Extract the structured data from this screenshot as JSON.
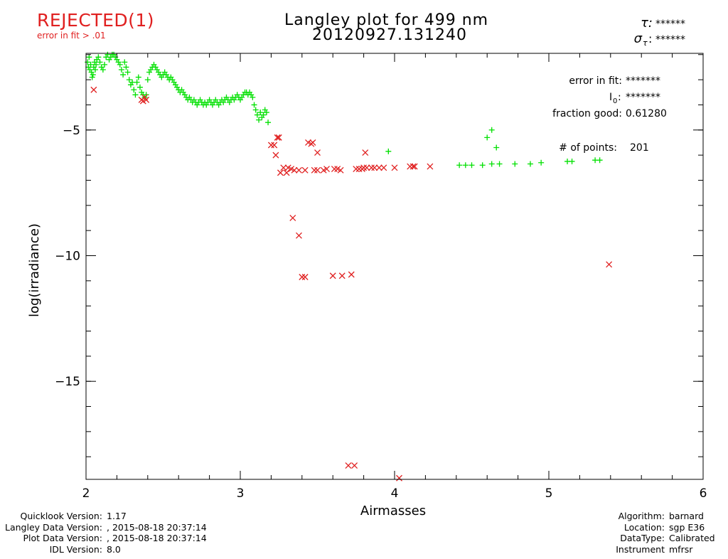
{
  "status": {
    "label": "REJECTED(1)",
    "reason": "error in fit > .01",
    "color": "#e02020"
  },
  "title": {
    "line1": "Langley plot for 499 nm",
    "line2": "20120927.131240"
  },
  "top_right": {
    "tau_symbol": "τ:",
    "tau_value": "******",
    "sigma_symbol": "σ",
    "sigma_sub": "τ",
    "sigma_colon": ":",
    "sigma_value": "******"
  },
  "fit_info": {
    "error_label": "error in fit:",
    "error_value": "*******",
    "i0_label": "I",
    "i0_sub": "0",
    "i0_colon": ":",
    "i0_value": "*******",
    "fraction_label": "fraction good:",
    "fraction_value": "0.61280",
    "points_label": "# of points:",
    "points_value": "201"
  },
  "footer_left": [
    {
      "label": "Quicklook Version:",
      "value": "1.17"
    },
    {
      "label": "Langley Data Version:",
      "value": ", 2015-08-18 20:37:14"
    },
    {
      "label": "Plot Data Version:",
      "value": ", 2015-08-18 20:37:14"
    },
    {
      "label": "IDL Version:",
      "value": "8.0"
    }
  ],
  "footer_right": [
    {
      "label": "Algorithm:",
      "value": "barnard"
    },
    {
      "label": "Location:",
      "value": "sgp E36"
    },
    {
      "label": "DataType:",
      "value": "Calibrated"
    },
    {
      "label": "Instrument",
      "value": "mfrsr"
    }
  ],
  "chart_data": {
    "type": "scatter",
    "xlabel": "Airmasses",
    "ylabel": "log(irradiance)",
    "xlim": [
      2,
      6
    ],
    "ylim": [
      -18.9,
      -1.95
    ],
    "x_ticks": [
      2,
      3,
      4,
      5,
      6
    ],
    "x_tick_labels": [
      "2",
      "3",
      "4",
      "5",
      "6"
    ],
    "y_ticks": [
      -5,
      -10,
      -15
    ],
    "y_tick_labels": [
      "−5",
      "−10",
      "−15"
    ],
    "grid": false,
    "series": [
      {
        "marker": "plus",
        "color": "#00e000",
        "points": [
          [
            2.01,
            -2.3
          ],
          [
            2.015,
            -2.5
          ],
          [
            2.02,
            -2.1
          ],
          [
            2.025,
            -2.6
          ],
          [
            2.03,
            -2.4
          ],
          [
            2.035,
            -2.7
          ],
          [
            2.04,
            -2.9
          ],
          [
            2.045,
            -2.8
          ],
          [
            2.05,
            -2.5
          ],
          [
            2.055,
            -2.3
          ],
          [
            2.06,
            -2.6
          ],
          [
            2.065,
            -2.4
          ],
          [
            2.07,
            -2.2
          ],
          [
            2.08,
            -2.1
          ],
          [
            2.09,
            -2.3
          ],
          [
            2.1,
            -2.5
          ],
          [
            2.11,
            -2.6
          ],
          [
            2.12,
            -2.4
          ],
          [
            2.13,
            -2.1
          ],
          [
            2.14,
            -2.0
          ],
          [
            2.15,
            -2.2
          ],
          [
            2.16,
            -2.1
          ],
          [
            2.17,
            -2.0
          ],
          [
            2.18,
            -2.0
          ],
          [
            2.19,
            -2.1
          ],
          [
            2.2,
            -2.2
          ],
          [
            2.21,
            -2.3
          ],
          [
            2.22,
            -2.4
          ],
          [
            2.23,
            -2.6
          ],
          [
            2.24,
            -2.8
          ],
          [
            2.25,
            -2.3
          ],
          [
            2.26,
            -2.5
          ],
          [
            2.27,
            -2.7
          ],
          [
            2.28,
            -3.0
          ],
          [
            2.29,
            -3.2
          ],
          [
            2.3,
            -3.1
          ],
          [
            2.31,
            -3.4
          ],
          [
            2.32,
            -3.6
          ],
          [
            2.33,
            -3.1
          ],
          [
            2.34,
            -2.9
          ],
          [
            2.35,
            -3.3
          ],
          [
            2.36,
            -3.5
          ],
          [
            2.37,
            -3.6
          ],
          [
            2.38,
            -3.7
          ],
          [
            2.39,
            -3.6
          ],
          [
            2.4,
            -3.0
          ],
          [
            2.41,
            -2.7
          ],
          [
            2.42,
            -2.6
          ],
          [
            2.43,
            -2.5
          ],
          [
            2.44,
            -2.4
          ],
          [
            2.45,
            -2.5
          ],
          [
            2.46,
            -2.6
          ],
          [
            2.47,
            -2.7
          ],
          [
            2.48,
            -2.8
          ],
          [
            2.49,
            -2.9
          ],
          [
            2.5,
            -2.8
          ],
          [
            2.51,
            -2.7
          ],
          [
            2.52,
            -2.8
          ],
          [
            2.53,
            -2.9
          ],
          [
            2.54,
            -3.0
          ],
          [
            2.55,
            -2.9
          ],
          [
            2.56,
            -3.0
          ],
          [
            2.57,
            -3.1
          ],
          [
            2.58,
            -3.2
          ],
          [
            2.59,
            -3.3
          ],
          [
            2.6,
            -3.4
          ],
          [
            2.61,
            -3.5
          ],
          [
            2.62,
            -3.4
          ],
          [
            2.63,
            -3.5
          ],
          [
            2.64,
            -3.6
          ],
          [
            2.65,
            -3.7
          ],
          [
            2.66,
            -3.8
          ],
          [
            2.67,
            -3.7
          ],
          [
            2.68,
            -3.8
          ],
          [
            2.69,
            -3.9
          ],
          [
            2.7,
            -3.8
          ],
          [
            2.71,
            -3.9
          ],
          [
            2.72,
            -4.0
          ],
          [
            2.73,
            -3.9
          ],
          [
            2.74,
            -3.8
          ],
          [
            2.75,
            -3.9
          ],
          [
            2.76,
            -4.0
          ],
          [
            2.77,
            -3.9
          ],
          [
            2.78,
            -4.0
          ],
          [
            2.79,
            -3.9
          ],
          [
            2.8,
            -3.8
          ],
          [
            2.81,
            -3.9
          ],
          [
            2.82,
            -4.0
          ],
          [
            2.83,
            -3.9
          ],
          [
            2.84,
            -3.8
          ],
          [
            2.85,
            -3.9
          ],
          [
            2.86,
            -4.0
          ],
          [
            2.87,
            -3.9
          ],
          [
            2.88,
            -3.8
          ],
          [
            2.89,
            -3.9
          ],
          [
            2.9,
            -3.8
          ],
          [
            2.91,
            -3.7
          ],
          [
            2.92,
            -3.8
          ],
          [
            2.93,
            -3.9
          ],
          [
            2.94,
            -3.8
          ],
          [
            2.95,
            -3.7
          ],
          [
            2.96,
            -3.8
          ],
          [
            2.97,
            -3.7
          ],
          [
            2.98,
            -3.6
          ],
          [
            2.99,
            -3.7
          ],
          [
            3.0,
            -3.8
          ],
          [
            3.01,
            -3.7
          ],
          [
            3.02,
            -3.6
          ],
          [
            3.03,
            -3.5
          ],
          [
            3.04,
            -3.5
          ],
          [
            3.05,
            -3.6
          ],
          [
            3.06,
            -3.5
          ],
          [
            3.07,
            -3.6
          ],
          [
            3.08,
            -3.7
          ],
          [
            3.09,
            -4.0
          ],
          [
            3.1,
            -4.2
          ],
          [
            3.11,
            -4.4
          ],
          [
            3.12,
            -4.6
          ],
          [
            3.13,
            -4.3
          ],
          [
            3.14,
            -4.5
          ],
          [
            3.15,
            -4.4
          ],
          [
            3.16,
            -4.2
          ],
          [
            3.17,
            -4.3
          ],
          [
            3.18,
            -4.7
          ],
          [
            3.96,
            -5.85
          ],
          [
            4.42,
            -6.4
          ],
          [
            4.46,
            -6.4
          ],
          [
            4.5,
            -6.4
          ],
          [
            4.57,
            -6.4
          ],
          [
            4.63,
            -6.35
          ],
          [
            4.6,
            -5.3
          ],
          [
            4.63,
            -5.0
          ],
          [
            4.66,
            -5.7
          ],
          [
            4.68,
            -6.35
          ],
          [
            4.78,
            -6.35
          ],
          [
            4.88,
            -6.35
          ],
          [
            4.95,
            -6.3
          ],
          [
            5.12,
            -6.25
          ],
          [
            5.15,
            -6.25
          ],
          [
            5.3,
            -6.2
          ],
          [
            5.33,
            -6.2
          ]
        ]
      },
      {
        "marker": "x",
        "color": "#e02020",
        "points": [
          [
            2.05,
            -3.4
          ],
          [
            2.36,
            -3.8
          ],
          [
            2.37,
            -3.85
          ],
          [
            2.38,
            -3.7
          ],
          [
            2.39,
            -3.8
          ],
          [
            3.2,
            -5.6
          ],
          [
            3.22,
            -5.6
          ],
          [
            3.23,
            -6.0
          ],
          [
            3.24,
            -5.3
          ],
          [
            3.25,
            -5.3
          ],
          [
            3.26,
            -6.7
          ],
          [
            3.28,
            -6.5
          ],
          [
            3.3,
            -6.7
          ],
          [
            3.31,
            -6.5
          ],
          [
            3.33,
            -6.55
          ],
          [
            3.35,
            -6.6
          ],
          [
            3.38,
            -6.6
          ],
          [
            3.42,
            -6.6
          ],
          [
            3.44,
            -5.5
          ],
          [
            3.46,
            -5.55
          ],
          [
            3.47,
            -5.5
          ],
          [
            3.48,
            -6.6
          ],
          [
            3.5,
            -6.6
          ],
          [
            3.5,
            -5.9
          ],
          [
            3.54,
            -6.6
          ],
          [
            3.56,
            -6.55
          ],
          [
            3.61,
            -6.55
          ],
          [
            3.63,
            -6.55
          ],
          [
            3.65,
            -6.6
          ],
          [
            3.75,
            -6.55
          ],
          [
            3.77,
            -6.55
          ],
          [
            3.79,
            -6.55
          ],
          [
            3.8,
            -6.5
          ],
          [
            3.82,
            -6.5
          ],
          [
            3.85,
            -6.5
          ],
          [
            3.87,
            -6.5
          ],
          [
            3.9,
            -6.5
          ],
          [
            3.93,
            -6.5
          ],
          [
            4.0,
            -6.5
          ],
          [
            4.1,
            -6.45
          ],
          [
            4.12,
            -6.45
          ],
          [
            4.13,
            -6.45
          ],
          [
            4.23,
            -6.45
          ],
          [
            3.81,
            -5.9
          ],
          [
            3.34,
            -8.5
          ],
          [
            3.38,
            -9.2
          ],
          [
            3.4,
            -10.85
          ],
          [
            3.42,
            -10.85
          ],
          [
            3.6,
            -10.8
          ],
          [
            3.66,
            -10.8
          ],
          [
            3.72,
            -10.75
          ],
          [
            3.7,
            -18.35
          ],
          [
            3.74,
            -18.35
          ],
          [
            4.03,
            -18.85
          ],
          [
            5.39,
            -10.35
          ]
        ]
      }
    ]
  }
}
